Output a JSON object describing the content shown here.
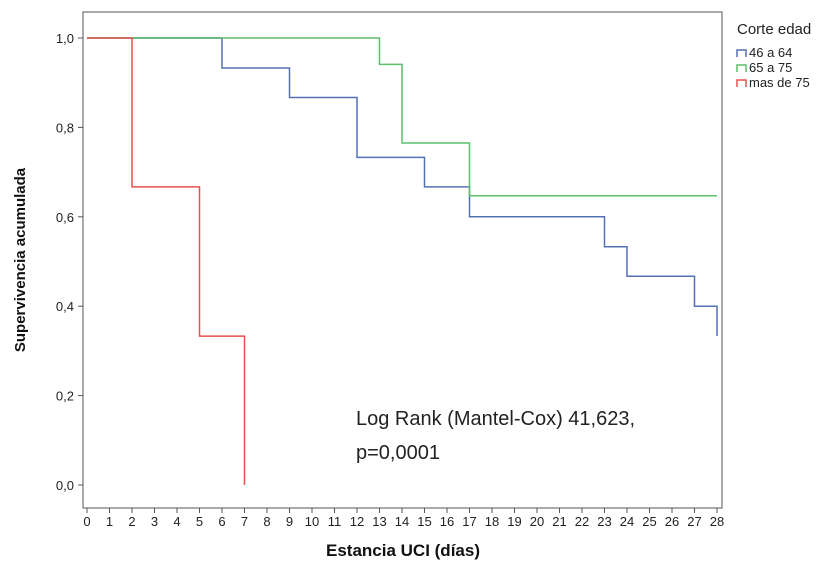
{
  "chart_data": {
    "type": "line",
    "step": true,
    "xlabel": "Estancia UCI (días)",
    "ylabel": "Supervivencia acumulada",
    "xlim": [
      0,
      28
    ],
    "ylim": [
      0,
      1.0
    ],
    "xticks": [
      0,
      1,
      2,
      3,
      4,
      5,
      6,
      7,
      8,
      9,
      10,
      11,
      12,
      13,
      14,
      15,
      16,
      17,
      18,
      19,
      20,
      21,
      22,
      23,
      24,
      25,
      26,
      27,
      28
    ],
    "yticks": [
      0.0,
      0.2,
      0.4,
      0.6,
      0.8,
      1.0
    ],
    "ytick_labels": [
      "0,0",
      "0,2",
      "0,4",
      "0,6",
      "0,8",
      "1,0"
    ],
    "grid": false,
    "legend": {
      "title": "Corte edad",
      "placement": "top-right-outside"
    },
    "series": [
      {
        "name": "46 a 64",
        "color": "#5470b5",
        "points": [
          [
            0,
            1.0
          ],
          [
            6,
            0.933
          ],
          [
            9,
            0.867
          ],
          [
            12,
            0.733
          ],
          [
            15,
            0.667
          ],
          [
            17,
            0.6
          ],
          [
            23,
            0.533
          ],
          [
            24,
            0.467
          ],
          [
            27,
            0.4
          ],
          [
            28,
            0.333
          ]
        ],
        "end_x": 28
      },
      {
        "name": "65 a 75",
        "color": "#5cbf6b",
        "points": [
          [
            0,
            1.0
          ],
          [
            13,
            0.941
          ],
          [
            14,
            0.765
          ],
          [
            17,
            0.647
          ]
        ],
        "end_x": 28
      },
      {
        "name": "mas de 75",
        "color": "#e8514f",
        "points": [
          [
            0,
            1.0
          ],
          [
            2,
            0.667
          ],
          [
            5,
            0.333
          ],
          [
            7,
            0.0
          ]
        ],
        "end_x": 7
      }
    ],
    "annotation": {
      "line1": "Log Rank (Mantel-Cox) 41,623,",
      "line2": "p=0,0001"
    }
  }
}
